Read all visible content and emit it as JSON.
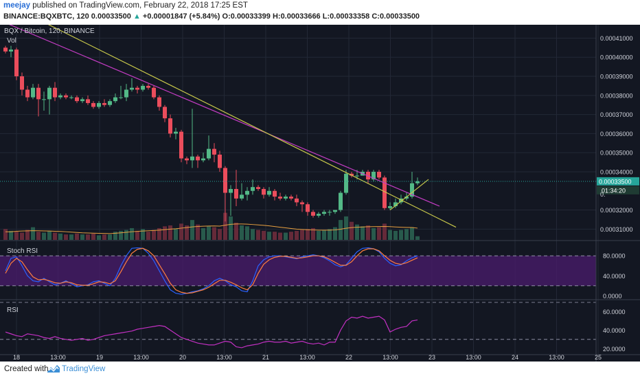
{
  "header": {
    "author": "meejay",
    "published_text": "published on TradingView.com, February 22, 2018 17:25 EST",
    "symbol": "BINANCE:BQXBTC",
    "interval": "120",
    "last": "0.00033500",
    "change": "+0.00001847 (+5.84%)",
    "o_label": "O:",
    "o_value": "0.00033399",
    "h_label": "H:",
    "h_value": "0.00033666",
    "l_label": "L:",
    "l_value": "0.00033358",
    "c_label": "C:",
    "c_value": "0.00033500"
  },
  "footer": {
    "created_with": "Created with",
    "brand": "TradingView"
  },
  "colors": {
    "background": "#131722",
    "up": "#53b987",
    "down": "#eb4d5c",
    "trend_magenta": "#c23cc2",
    "trend_yellow": "#c8c84a",
    "stoch_k": "#2962ff",
    "stoch_d": "#ff7f3f",
    "rsi": "#c330c3",
    "price_tag": "#26a69a"
  },
  "chart_data": [
    {
      "type": "candlestick",
      "title": "BQX / Bitcoin, 120, BINANCE",
      "volume_label": "Vol",
      "ylim": [
        0.000304,
        0.000417
      ],
      "y_ticks": [
        "0.00041000",
        "0.00040000",
        "0.00039000",
        "0.00038000",
        "0.00037000",
        "0.00036000",
        "0.00035000",
        "0.00034000",
        "0.00032000",
        "0.00031000"
      ],
      "x_ticks": [
        "18",
        "13:00",
        "19",
        "13:00",
        "20",
        "13:00",
        "21",
        "13:00",
        "22",
        "13:00",
        "23",
        "13:00",
        "24",
        "13:00",
        "25"
      ],
      "last_price_label": "0.00033500",
      "countdown_label": "01:34:20",
      "partial_price_label": "0.",
      "candles": [
        [
          0.000405,
          0.000403,
          0.000406,
          0.000402
        ],
        [
          0.000403,
          0.000404,
          0.000406,
          0.0004
        ],
        [
          0.000404,
          0.00039,
          0.000405,
          0.000388
        ],
        [
          0.00039,
          0.000383,
          0.000392,
          0.00038
        ],
        [
          0.000383,
          0.000379,
          0.000385,
          0.000377
        ],
        [
          0.000379,
          0.000384,
          0.000386,
          0.000378
        ],
        [
          0.000384,
          0.000378,
          0.000386,
          0.000369
        ],
        [
          0.000378,
          0.000378,
          0.000382,
          0.000372
        ],
        [
          0.000378,
          0.000384,
          0.000385,
          0.00037
        ],
        [
          0.000384,
          0.000379,
          0.000387,
          0.000377
        ],
        [
          0.000379,
          0.00038,
          0.000381,
          0.000378
        ],
        [
          0.00038,
          0.000379,
          0.000381,
          0.000378
        ],
        [
          0.000379,
          0.000379,
          0.00038,
          0.000378
        ],
        [
          0.000379,
          0.000377,
          0.00038,
          0.000376
        ],
        [
          0.000377,
          0.000378,
          0.000379,
          0.000376
        ],
        [
          0.000378,
          0.000376,
          0.00038,
          0.000375
        ],
        [
          0.000376,
          0.000374,
          0.000377,
          0.000373
        ],
        [
          0.000374,
          0.000376,
          0.000377,
          0.000373
        ],
        [
          0.000376,
          0.000375,
          0.000378,
          0.000374
        ],
        [
          0.000375,
          0.000377,
          0.000378,
          0.000374
        ],
        [
          0.000377,
          0.000379,
          0.000381,
          0.000376
        ],
        [
          0.000379,
          0.000379,
          0.000385,
          0.000378
        ],
        [
          0.000379,
          0.000383,
          0.000386,
          0.000377
        ],
        [
          0.000383,
          0.000384,
          0.000389,
          0.000382
        ],
        [
          0.000384,
          0.000383,
          0.000385,
          0.000381
        ],
        [
          0.000383,
          0.000385,
          0.000386,
          0.000382
        ],
        [
          0.000385,
          0.000384,
          0.000386,
          0.000383
        ],
        [
          0.000384,
          0.000379,
          0.000385,
          0.000378
        ],
        [
          0.000379,
          0.000374,
          0.00038,
          0.000372
        ],
        [
          0.000374,
          0.000368,
          0.000375,
          0.000366
        ],
        [
          0.000368,
          0.00036,
          0.00037,
          0.000358
        ],
        [
          0.00036,
          0.000361,
          0.000363,
          0.000357
        ],
        [
          0.000361,
          0.000347,
          0.000362,
          0.000345
        ],
        [
          0.000347,
          0.000346,
          0.000348,
          0.000344
        ],
        [
          0.000346,
          0.000348,
          0.000373,
          0.000342
        ],
        [
          0.000348,
          0.000346,
          0.000349,
          0.000342
        ],
        [
          0.000346,
          0.000347,
          0.00035,
          0.000345
        ],
        [
          0.000347,
          0.000352,
          0.000359,
          0.000346
        ],
        [
          0.000352,
          0.000349,
          0.000355,
          0.000345
        ],
        [
          0.000349,
          0.000342,
          0.000351,
          0.00034
        ],
        [
          0.000342,
          0.000329,
          0.000343,
          0.000314
        ],
        [
          0.000329,
          0.000331,
          0.000333,
          0.000317
        ],
        [
          0.000331,
          0.000326,
          0.000341,
          0.000322
        ],
        [
          0.000326,
          0.000328,
          0.000334,
          0.000325
        ],
        [
          0.000328,
          0.00033,
          0.000332,
          0.000325
        ],
        [
          0.00033,
          0.000332,
          0.000336,
          0.000328
        ],
        [
          0.000332,
          0.000331,
          0.000333,
          0.00033
        ],
        [
          0.000331,
          0.000328,
          0.000332,
          0.000326
        ],
        [
          0.000328,
          0.00033,
          0.000332,
          0.000327
        ],
        [
          0.00033,
          0.000327,
          0.000331,
          0.000325
        ],
        [
          0.000327,
          0.000326,
          0.000329,
          0.000325
        ],
        [
          0.000326,
          0.000327,
          0.000328,
          0.000325
        ],
        [
          0.000327,
          0.000326,
          0.000328,
          0.000325
        ],
        [
          0.000326,
          0.000324,
          0.000328,
          0.000322
        ],
        [
          0.000324,
          0.000323,
          0.000325,
          0.000319
        ],
        [
          0.000323,
          0.000319,
          0.000324,
          0.000317
        ],
        [
          0.000319,
          0.000317,
          0.00032,
          0.000316
        ],
        [
          0.000317,
          0.000318,
          0.000319,
          0.000316
        ],
        [
          0.000318,
          0.000319,
          0.00032,
          0.000317
        ],
        [
          0.000319,
          0.000319,
          0.00032,
          0.000317
        ],
        [
          0.000319,
          0.00032,
          0.00032,
          0.000318
        ],
        [
          0.00032,
          0.000329,
          0.00033,
          0.000319
        ],
        [
          0.000329,
          0.000339,
          0.000341,
          0.000328
        ],
        [
          0.000339,
          0.000338,
          0.00034,
          0.000337
        ],
        [
          0.000338,
          0.000338,
          0.000341,
          0.000336
        ],
        [
          0.000338,
          0.00034,
          0.000341,
          0.000338
        ],
        [
          0.00034,
          0.000336,
          0.000341,
          0.000334
        ],
        [
          0.000336,
          0.00034,
          0.000341,
          0.000335
        ],
        [
          0.00034,
          0.000337,
          0.000341,
          0.000336
        ],
        [
          0.000337,
          0.000321,
          0.000338,
          0.00032
        ],
        [
          0.000321,
          0.000322,
          0.000324,
          0.00032
        ],
        [
          0.000322,
          0.000324,
          0.000326,
          0.000321
        ],
        [
          0.000324,
          0.000326,
          0.000328,
          0.000323
        ],
        [
          0.000326,
          0.000327,
          0.000329,
          0.000325
        ],
        [
          0.000327,
          0.000334,
          0.00034,
          0.000326
        ],
        [
          0.000334,
          0.000335,
          0.000337,
          0.000333
        ]
      ],
      "volume": [
        12,
        10,
        9,
        8,
        11,
        14,
        9,
        8,
        10,
        8,
        7,
        6,
        6,
        7,
        6,
        6,
        7,
        5,
        6,
        6,
        9,
        10,
        11,
        13,
        10,
        12,
        9,
        11,
        13,
        15,
        16,
        12,
        18,
        16,
        22,
        17,
        13,
        15,
        14,
        12,
        30,
        26,
        19,
        16,
        15,
        12,
        11,
        10,
        9,
        9,
        8,
        8,
        9,
        10,
        11,
        12,
        13,
        10,
        11,
        12,
        14,
        22,
        26,
        20,
        17,
        15,
        16,
        13,
        14,
        18,
        11,
        10,
        11,
        12,
        14,
        4
      ],
      "volume_ma": [
        9,
        9,
        9.5,
        9.8,
        10,
        10.2,
        10.1,
        9.9,
        9.8,
        9.5,
        9.3,
        9,
        8.6,
        8.2,
        7.8,
        7.6,
        7.4,
        7.2,
        7.1,
        7,
        7.3,
        7.8,
        8.4,
        9,
        9.4,
        9.8,
        10.1,
        10.4,
        10.8,
        11.3,
        11.9,
        12.3,
        13,
        13.6,
        14.4,
        14.9,
        15.1,
        15.3,
        15.4,
        15.2,
        16.3,
        17.2,
        17.6,
        17.6,
        17.4,
        17,
        16.6,
        16.1,
        15.5,
        14.8,
        14,
        13.3,
        12.6,
        11.9,
        11.5,
        11.2,
        11,
        10.8,
        10.8,
        10.8,
        11,
        11.8,
        12.9,
        13.6,
        14,
        14.3,
        14.6,
        14.7,
        14.8,
        14.9,
        14.7,
        14.3,
        14,
        13.8,
        13.7,
        13
      ]
    },
    {
      "type": "line",
      "title": "Stoch RSI",
      "ylim": [
        -5,
        105
      ],
      "y_ticks": [
        "80.0000",
        "40.0000",
        "0.0000"
      ],
      "band": [
        20,
        80
      ],
      "series": [
        {
          "values": [
            50,
            75,
            78,
            60,
            40,
            30,
            28,
            35,
            28,
            22,
            25,
            30,
            24,
            18,
            20,
            22,
            28,
            30,
            25,
            20,
            35,
            60,
            80,
            95,
            96,
            95,
            85,
            70,
            50,
            30,
            12,
            5,
            3,
            5,
            8,
            10,
            14,
            20,
            30,
            35,
            30,
            22,
            18,
            10,
            8,
            30,
            60,
            72,
            78,
            80,
            80,
            78,
            76,
            74,
            78,
            80,
            82,
            80,
            76,
            70,
            62,
            58,
            62,
            75,
            88,
            95,
            96,
            94,
            88,
            75,
            65,
            60,
            62,
            70,
            76,
            80
          ]
        },
        {
          "values": [
            45,
            65,
            75,
            68,
            52,
            38,
            32,
            33,
            30,
            26,
            25,
            28,
            26,
            22,
            21,
            21,
            24,
            28,
            27,
            24,
            30,
            48,
            68,
            85,
            93,
            95,
            90,
            80,
            62,
            44,
            25,
            12,
            7,
            5,
            6,
            9,
            12,
            17,
            24,
            31,
            31,
            27,
            22,
            16,
            12,
            22,
            45,
            63,
            72,
            77,
            79,
            79,
            77,
            75,
            76,
            78,
            80,
            80,
            78,
            73,
            67,
            61,
            61,
            68,
            80,
            90,
            94,
            94,
            90,
            80,
            71,
            65,
            63,
            66,
            71,
            76
          ]
        }
      ]
    },
    {
      "type": "line",
      "title": "RSI",
      "ylim": [
        15,
        70
      ],
      "y_ticks": [
        "60.0000",
        "40.0000",
        "20.0000"
      ],
      "band": [
        30,
        70
      ],
      "series": [
        {
          "values": [
            38,
            36,
            34,
            33,
            36,
            35,
            34,
            32,
            31,
            33,
            31,
            30,
            29,
            30,
            31,
            29,
            30,
            32,
            34,
            35,
            36,
            37,
            38,
            39,
            41,
            42,
            43,
            44,
            45,
            44,
            40,
            36,
            32,
            30,
            28,
            26,
            25,
            24,
            24,
            26,
            28,
            27,
            22,
            21,
            23,
            24,
            25,
            27,
            28,
            27,
            27,
            28,
            26,
            27,
            28,
            26,
            25,
            26,
            24,
            27,
            27,
            40,
            50,
            54,
            53,
            55,
            53,
            54,
            55,
            51,
            38,
            41,
            43,
            44,
            50,
            51
          ]
        }
      ]
    }
  ]
}
